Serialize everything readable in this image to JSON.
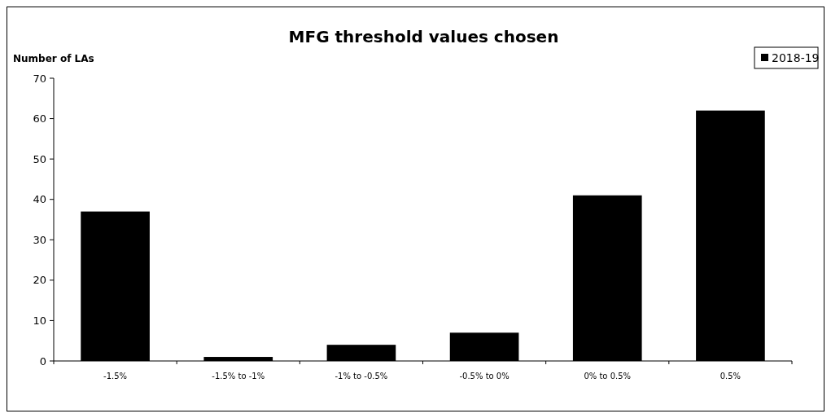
{
  "chart_data": {
    "type": "bar",
    "title": "MFG threshold values chosen",
    "ylabel": "Number of LAs",
    "categories": [
      "-1.5%",
      "-1.5% to -1%",
      "-1% to -0.5%",
      "-0.5% to 0%",
      "0% to 0.5%",
      "0.5%"
    ],
    "series": [
      {
        "name": "2018-19",
        "color": "#000000",
        "values": [
          37,
          1,
          4,
          7,
          41,
          62
        ]
      }
    ],
    "ylim": [
      0,
      70
    ],
    "yticks": [
      0,
      10,
      20,
      30,
      40,
      50,
      60,
      70
    ],
    "grid": false,
    "legend": "top right"
  }
}
